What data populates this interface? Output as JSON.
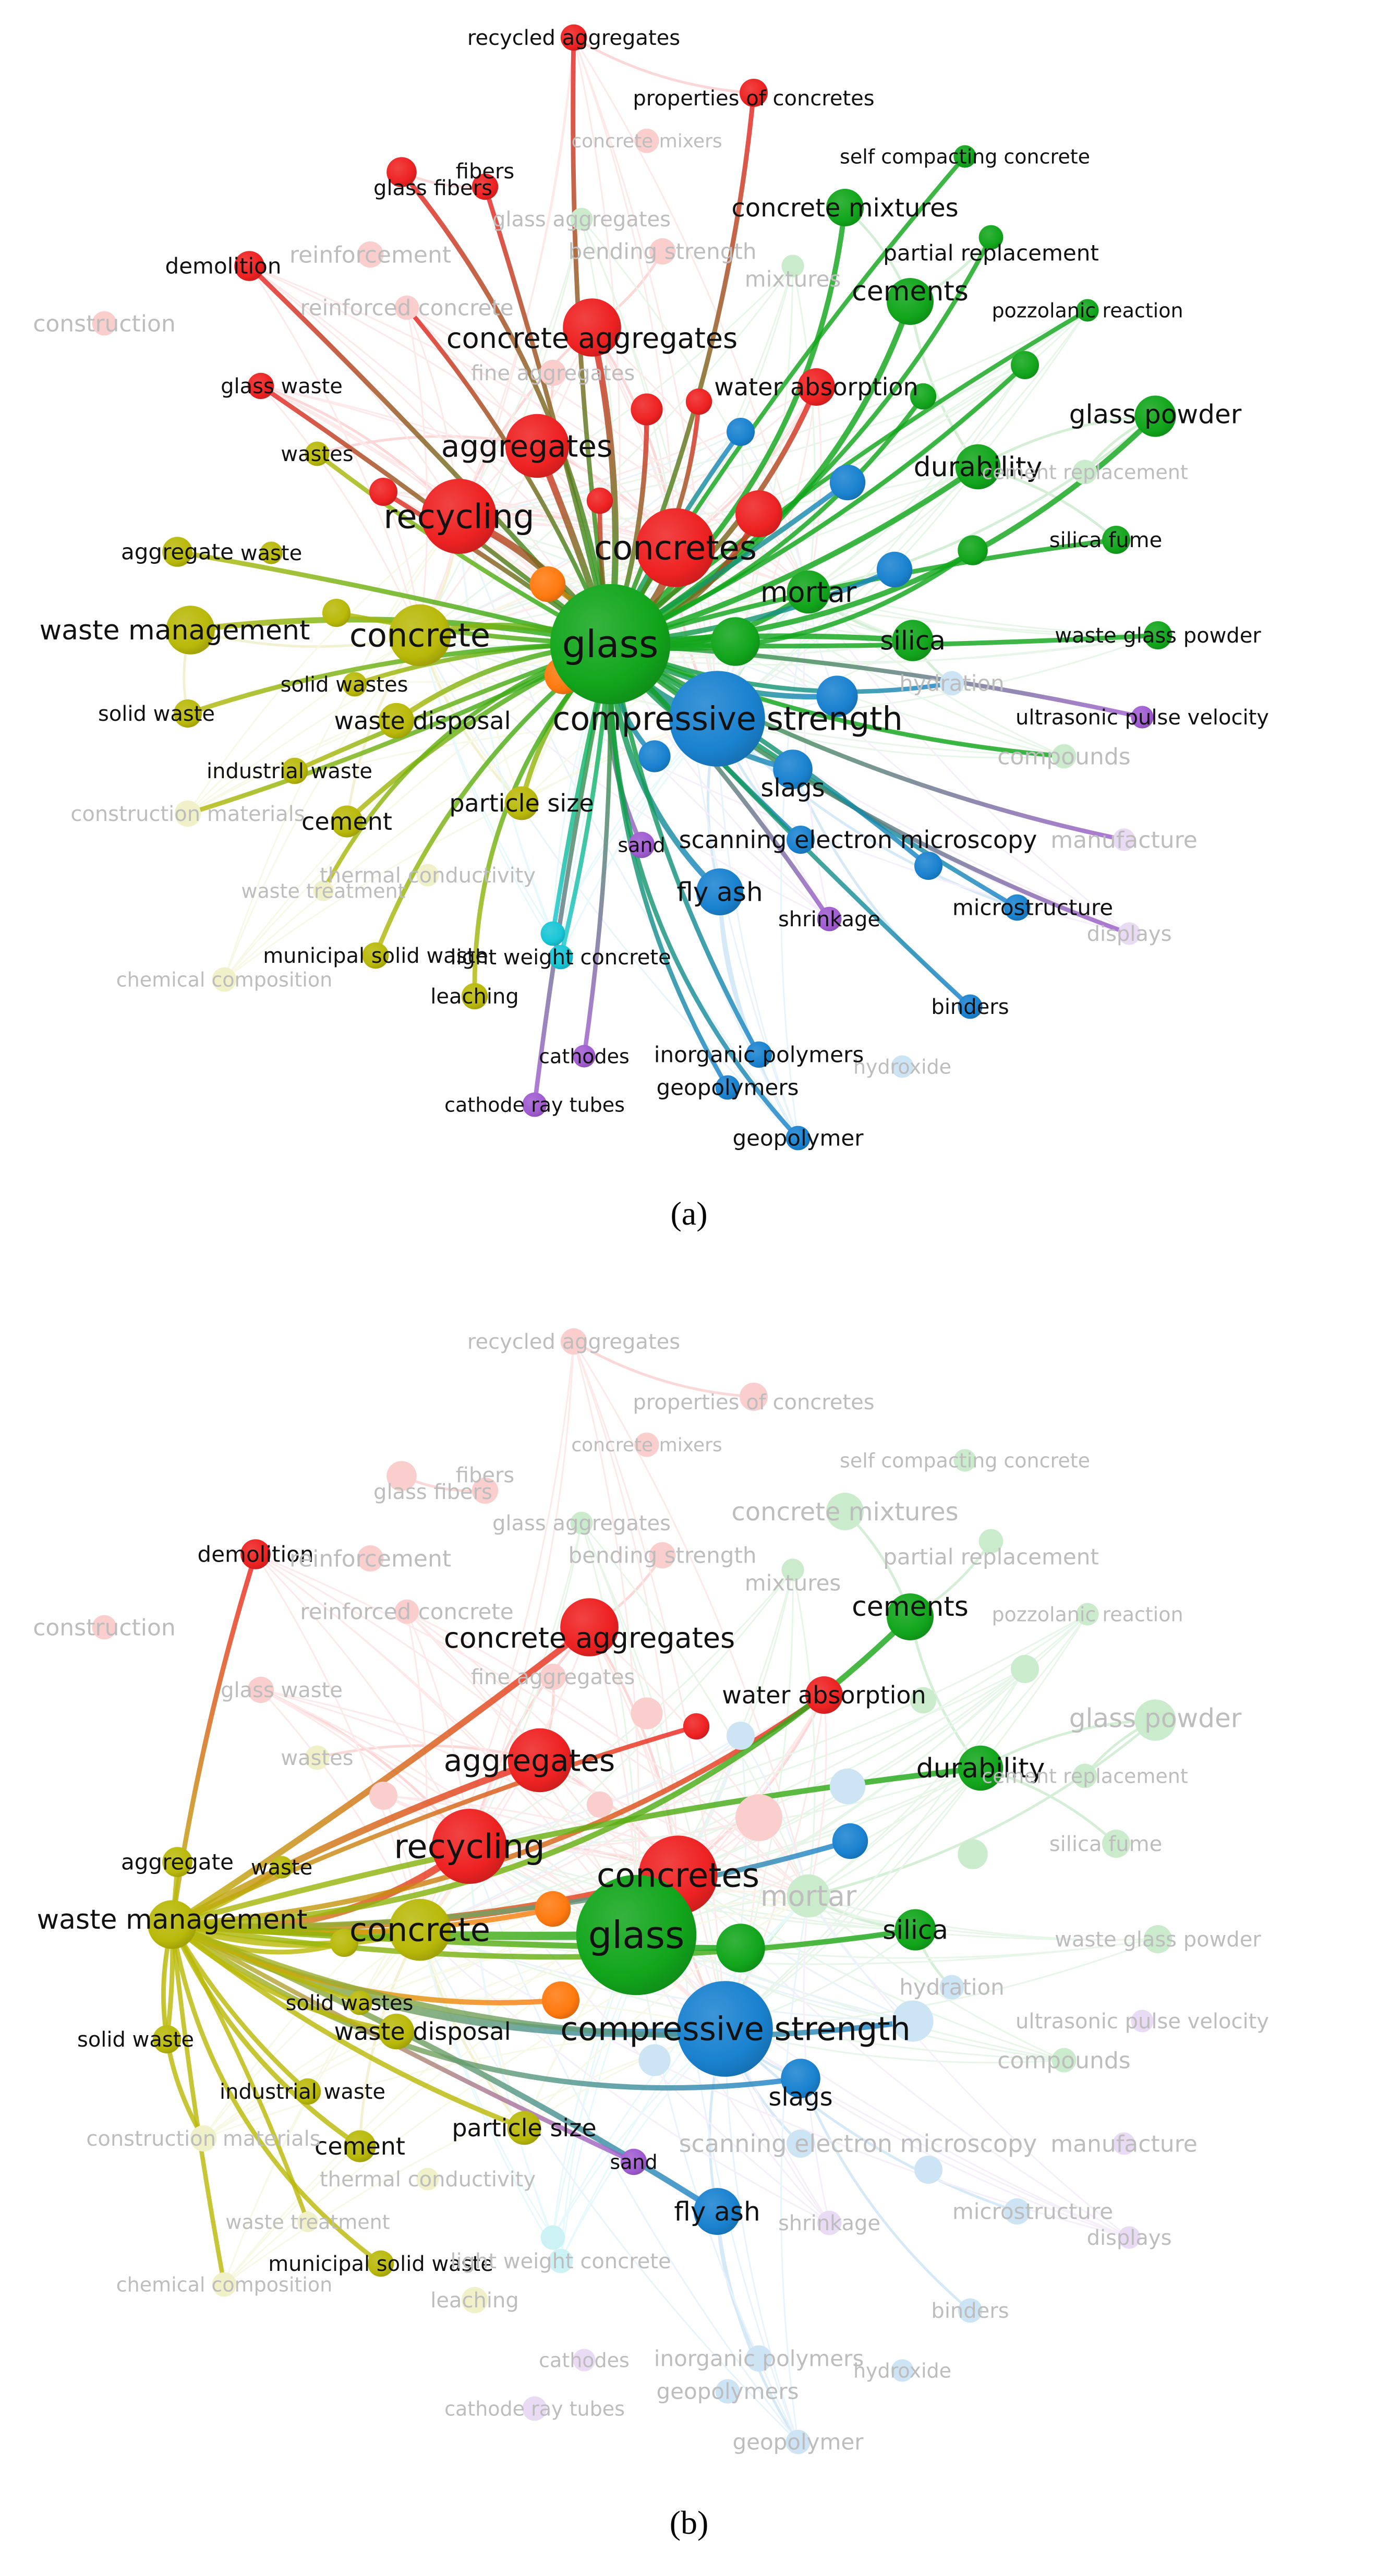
{
  "panels": [
    {
      "id": "a",
      "label": "(a)",
      "focus": "glass",
      "dim_nodes": [
        "construction",
        "reinforcement",
        "reinforced concrete",
        "glass aggregates",
        "bending strength",
        "fine aggregates",
        "concrete mixers",
        "mixtures",
        "construction materials",
        "waste treatment",
        "chemical composition",
        "thermal conductivity",
        "compounds",
        "manufacture",
        "displays",
        "hydroxide",
        "hydration",
        "cement replacement"
      ],
      "bright_nodes": "all-others"
    },
    {
      "id": "b",
      "label": "(b)",
      "focus": "waste management",
      "bright_nodes": [
        "demolition",
        "aggregate",
        "waste",
        "waste management",
        "concrete",
        "solid waste",
        "solid wastes",
        "waste disposal",
        "industrial waste",
        "cement",
        "municipal solid waste",
        "particle size",
        "recycling",
        "aggregates",
        "concrete aggregates",
        "concretes",
        "water absorption",
        "cements",
        "durability",
        "glass",
        "silica",
        "compressive strength",
        "slags",
        "fly ash",
        "sand",
        "orange1",
        "orange2",
        "yellow_small1",
        "red_small3",
        "green_near_glass",
        "blue_small3"
      ]
    }
  ],
  "colors": {
    "red": "#ee2222",
    "green": "#12a61c",
    "blue": "#1a82d0",
    "yellow": "#b9b90a",
    "purple": "#a05cd0",
    "cyan": "#18c6d6",
    "orange": "#ff7a10"
  },
  "nodes": [
    {
      "id": "glass",
      "label": "glass",
      "c": "green",
      "v": 128,
      "fs": 72
    },
    {
      "id": "compressive strength",
      "label": "compressive strength",
      "c": "blue",
      "v": 102,
      "fs": 62
    },
    {
      "id": "concretes",
      "label": "concretes",
      "c": "red",
      "v": 84,
      "fs": 64
    },
    {
      "id": "recycling",
      "label": "recycling",
      "c": "red",
      "v": 80,
      "fs": 64
    },
    {
      "id": "concrete",
      "label": "concrete",
      "c": "yellow",
      "v": 66,
      "fs": 62
    },
    {
      "id": "aggregates",
      "label": "aggregates",
      "c": "red",
      "v": 68,
      "fs": 58
    },
    {
      "id": "concrete aggregates",
      "label": "concrete aggregates",
      "c": "red",
      "v": 62,
      "fs": 54
    },
    {
      "id": "waste management",
      "label": "waste management",
      "c": "yellow",
      "v": 52,
      "fs": 52
    },
    {
      "id": "cements",
      "label": "cements",
      "c": "green",
      "v": 50,
      "fs": 52
    },
    {
      "id": "durability",
      "label": "durability",
      "c": "green",
      "v": 48,
      "fs": 52
    },
    {
      "id": "glass powder",
      "label": "glass powder",
      "c": "green",
      "v": 44,
      "fs": 50
    },
    {
      "id": "mortar",
      "label": "mortar",
      "c": "green",
      "v": 46,
      "fs": 54
    },
    {
      "id": "silica",
      "label": "silica",
      "c": "green",
      "v": 44,
      "fs": 50
    },
    {
      "id": "fly ash",
      "label": "fly ash",
      "c": "blue",
      "v": 50,
      "fs": 50
    },
    {
      "id": "slags",
      "label": "slags",
      "c": "blue",
      "v": 42,
      "fs": 48
    },
    {
      "id": "water absorption",
      "label": "water absorption",
      "c": "red",
      "v": 40,
      "fs": 46
    },
    {
      "id": "concrete mixtures",
      "label": "concrete mixtures",
      "c": "green",
      "v": 40,
      "fs": 48
    },
    {
      "id": "waste disposal",
      "label": "waste disposal",
      "c": "yellow",
      "v": 38,
      "fs": 46
    },
    {
      "id": "particle size",
      "label": "particle size",
      "c": "yellow",
      "v": 36,
      "fs": 46
    },
    {
      "id": "cement",
      "label": "cement",
      "c": "yellow",
      "v": 34,
      "fs": 46
    },
    {
      "id": "scanning electron microscopy",
      "label": "scanning electron microscopy",
      "c": "blue",
      "v": 30,
      "fs": 46
    },
    {
      "id": "demolition",
      "label": "demolition",
      "c": "red",
      "v": 32,
      "fs": 42
    },
    {
      "id": "aggregate",
      "label": "aggregate",
      "c": "yellow",
      "v": 32,
      "fs": 42
    },
    {
      "id": "waste",
      "label": "waste",
      "c": "yellow",
      "v": 24,
      "fs": 40
    },
    {
      "id": "solid wastes",
      "label": "solid wastes",
      "c": "yellow",
      "v": 26,
      "fs": 40
    },
    {
      "id": "solid waste",
      "label": "solid waste",
      "c": "yellow",
      "v": 30,
      "fs": 40
    },
    {
      "id": "industrial waste",
      "label": "industrial waste",
      "c": "yellow",
      "v": 28,
      "fs": 40
    },
    {
      "id": "construction materials",
      "label": "construction materials",
      "c": "yellow",
      "v": 28,
      "fs": 40
    },
    {
      "id": "waste treatment",
      "label": "waste treatment",
      "c": "yellow",
      "v": 22,
      "fs": 38
    },
    {
      "id": "municipal solid waste",
      "label": "municipal solid waste",
      "c": "yellow",
      "v": 28,
      "fs": 40
    },
    {
      "id": "chemical composition",
      "label": "chemical composition",
      "c": "yellow",
      "v": 26,
      "fs": 38
    },
    {
      "id": "leaching",
      "label": "leaching",
      "c": "yellow",
      "v": 28,
      "fs": 40
    },
    {
      "id": "wastes",
      "label": "wastes",
      "c": "yellow",
      "v": 26,
      "fs": 40
    },
    {
      "id": "glass waste",
      "label": "glass waste",
      "c": "red",
      "v": 28,
      "fs": 40
    },
    {
      "id": "construction",
      "label": "construction",
      "c": "red",
      "v": 26,
      "fs": 44
    },
    {
      "id": "reinforcement",
      "label": "reinforcement",
      "c": "red",
      "v": 28,
      "fs": 44
    },
    {
      "id": "reinforced concrete",
      "label": "reinforced concrete",
      "c": "red",
      "v": 26,
      "fs": 42
    },
    {
      "id": "glass fibers",
      "label": "glass fibers",
      "c": "red",
      "v": 32,
      "fs": 40
    },
    {
      "id": "fibers",
      "label": "fibers",
      "c": "red",
      "v": 28,
      "fs": 40
    },
    {
      "id": "recycled aggregates",
      "label": "recycled aggregates",
      "c": "red",
      "v": 28,
      "fs": 40
    },
    {
      "id": "properties of concretes",
      "label": "properties of concretes",
      "c": "red",
      "v": 30,
      "fs": 40
    },
    {
      "id": "concrete mixers",
      "label": "concrete mixers",
      "c": "red",
      "v": 26,
      "fs": 36
    },
    {
      "id": "glass aggregates",
      "label": "glass aggregates",
      "c": "green",
      "v": 24,
      "fs": 40
    },
    {
      "id": "bending strength",
      "label": "bending strength",
      "c": "red",
      "v": 28,
      "fs": 42
    },
    {
      "id": "fine aggregates",
      "label": "fine aggregates",
      "c": "red",
      "v": 28,
      "fs": 40
    },
    {
      "id": "mixtures",
      "label": "mixtures",
      "c": "green",
      "v": 24,
      "fs": 42
    },
    {
      "id": "self compacting concrete",
      "label": "self compacting concrete",
      "c": "green",
      "v": 24,
      "fs": 38
    },
    {
      "id": "partial replacement",
      "label": "partial replacement",
      "c": "green",
      "v": 26,
      "fs": 42
    },
    {
      "id": "pozzolanic reaction",
      "label": "pozzolanic reaction",
      "c": "green",
      "v": 24,
      "fs": 38
    },
    {
      "id": "cement replacement",
      "label": "cement replacement",
      "c": "green",
      "v": 26,
      "fs": 38
    },
    {
      "id": "silica fume",
      "label": "silica fume",
      "c": "green",
      "v": 30,
      "fs": 40
    },
    {
      "id": "waste glass powder",
      "label": "waste glass powder",
      "c": "green",
      "v": 30,
      "fs": 40
    },
    {
      "id": "hydration",
      "label": "hydration",
      "c": "blue",
      "v": 26,
      "fs": 42
    },
    {
      "id": "ultrasonic pulse velocity",
      "label": "ultrasonic pulse velocity",
      "c": "purple",
      "v": 24,
      "fs": 40
    },
    {
      "id": "compounds",
      "label": "compounds",
      "c": "green",
      "v": 26,
      "fs": 44
    },
    {
      "id": "manufacture",
      "label": "manufacture",
      "c": "purple",
      "v": 24,
      "fs": 44
    },
    {
      "id": "microstructure",
      "label": "microstructure",
      "c": "blue",
      "v": 28,
      "fs": 42
    },
    {
      "id": "displays",
      "label": "displays",
      "c": "purple",
      "v": 24,
      "fs": 40
    },
    {
      "id": "binders",
      "label": "binders",
      "c": "blue",
      "v": 26,
      "fs": 40
    },
    {
      "id": "hydroxide",
      "label": "hydroxide",
      "c": "blue",
      "v": 24,
      "fs": 38
    },
    {
      "id": "shrinkage",
      "label": "shrinkage",
      "c": "purple",
      "v": 26,
      "fs": 40
    },
    {
      "id": "sand",
      "label": "sand",
      "c": "purple",
      "v": 28,
      "fs": 38
    },
    {
      "id": "thermal conductivity",
      "label": "thermal conductivity",
      "c": "yellow",
      "v": 24,
      "fs": 40
    },
    {
      "id": "light weight concrete",
      "label": "light weight concrete",
      "c": "cyan",
      "v": 26,
      "fs": 40
    },
    {
      "id": "inorganic polymers",
      "label": "inorganic polymers",
      "c": "blue",
      "v": 28,
      "fs": 42
    },
    {
      "id": "geopolymers",
      "label": "geopolymers",
      "c": "blue",
      "v": 26,
      "fs": 42
    },
    {
      "id": "geopolymer",
      "label": "geopolymer",
      "c": "blue",
      "v": 26,
      "fs": 42
    },
    {
      "id": "cathodes",
      "label": "cathodes",
      "c": "purple",
      "v": 24,
      "fs": 38
    },
    {
      "id": "cathode ray tubes",
      "label": "cathode ray tubes",
      "c": "purple",
      "v": 26,
      "fs": 38
    },
    {
      "id": "orange1",
      "label": "",
      "c": "orange",
      "v": 38,
      "fs": 0
    },
    {
      "id": "orange2",
      "label": "",
      "c": "orange",
      "v": 40,
      "fs": 0
    },
    {
      "id": "yellow_small1",
      "label": "",
      "c": "yellow",
      "v": 30,
      "fs": 0
    },
    {
      "id": "red_small1",
      "label": "",
      "c": "red",
      "v": 30,
      "fs": 0
    },
    {
      "id": "red_small2",
      "label": "",
      "c": "red",
      "v": 34,
      "fs": 0
    },
    {
      "id": "red_small3",
      "label": "",
      "c": "red",
      "v": 28,
      "fs": 0
    },
    {
      "id": "red_small4",
      "label": "",
      "c": "red",
      "v": 50,
      "fs": 0
    },
    {
      "id": "red_small5",
      "label": "",
      "c": "red",
      "v": 28,
      "fs": 0
    },
    {
      "id": "green_near_glass",
      "label": "",
      "c": "green",
      "v": 52,
      "fs": 0
    },
    {
      "id": "green_small2",
      "label": "",
      "c": "green",
      "v": 30,
      "fs": 0
    },
    {
      "id": "green_small3",
      "label": "",
      "c": "green",
      "v": 28,
      "fs": 0
    },
    {
      "id": "green_small4",
      "label": "",
      "c": "green",
      "v": 32,
      "fs": 0
    },
    {
      "id": "blue_small1",
      "label": "",
      "c": "blue",
      "v": 30,
      "fs": 0
    },
    {
      "id": "blue_small2",
      "label": "",
      "c": "blue",
      "v": 38,
      "fs": 0
    },
    {
      "id": "blue_small3",
      "label": "",
      "c": "blue",
      "v": 38,
      "fs": 0
    },
    {
      "id": "blue_small4",
      "label": "",
      "c": "blue",
      "v": 44,
      "fs": 0
    },
    {
      "id": "blue_small5",
      "label": "",
      "c": "blue",
      "v": 34,
      "fs": 0
    },
    {
      "id": "blue_small6",
      "label": "",
      "c": "blue",
      "v": 30,
      "fs": 0
    },
    {
      "id": "cyan_small1",
      "label": "",
      "c": "cyan",
      "v": 26,
      "fs": 0
    }
  ]
}
